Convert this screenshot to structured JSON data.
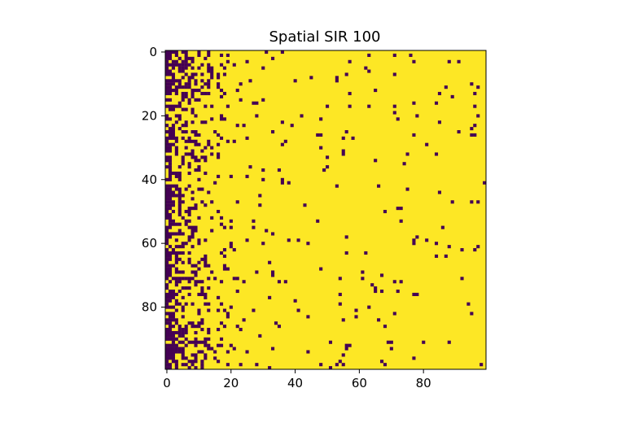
{
  "chart_data": {
    "type": "heatmap",
    "title": "Spatial SIR 100",
    "rows": 100,
    "cols": 100,
    "xlim": [
      0,
      99
    ],
    "ylim": [
      99,
      0
    ],
    "x_ticks": [
      0,
      20,
      40,
      60,
      80
    ],
    "y_ticks": [
      0,
      20,
      40,
      60,
      80
    ],
    "x_tick_labels": [
      "0",
      "20",
      "40",
      "60",
      "80"
    ],
    "y_tick_labels": [
      "0",
      "20",
      "40",
      "60",
      "80"
    ],
    "values": [
      0,
      1
    ],
    "colormap": "viridis",
    "colors": {
      "low": "#440154",
      "high": "#fde725"
    },
    "pattern": "Cells are mostly 1 (yellow). Probability of 0 (dark purple) is highest near column 0 and decays toward the right; slightly denser dark clusters near the top-left and bottom-left rows.",
    "zero_probability_by_column_decay": {
      "near_left": 0.65,
      "scale_columns": 8,
      "far_right_floor": 0.02
    },
    "grid": false,
    "legend": "none"
  }
}
